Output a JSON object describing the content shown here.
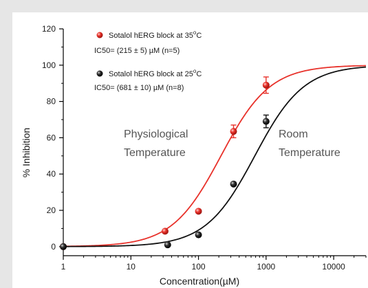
{
  "chart_data": {
    "type": "scatter",
    "xlabel": "Concentration(µM)",
    "ylabel": "% Inhibition",
    "xscale": "log",
    "xlim": [
      1,
      30000
    ],
    "ylim": [
      -5,
      120
    ],
    "x_ticks": [
      1,
      10,
      100,
      1000,
      10000
    ],
    "x_tick_labels": [
      "1",
      "10",
      "100",
      "1000",
      "10000"
    ],
    "y_ticks": [
      0,
      20,
      40,
      60,
      80,
      100,
      120
    ],
    "y_tick_labels": [
      "0",
      "20",
      "40",
      "60",
      "80",
      "100",
      "120"
    ],
    "grid": false,
    "legend_placement": "top-left",
    "series": [
      {
        "name": "Sotalol hERG block at 35°C",
        "label_main": "Sotalol hERG block at 35",
        "label_sup": "o",
        "label_tail": "C",
        "ic50_text": "IC50= (215 ± 5) µM  (n=5)",
        "color": "#e8312a",
        "ic50": 215,
        "hill": 1.2,
        "points": [
          {
            "x": 1,
            "y": 0,
            "err": 0
          },
          {
            "x": 32,
            "y": 8.5,
            "err": 0
          },
          {
            "x": 100,
            "y": 19.5,
            "err": 0
          },
          {
            "x": 330,
            "y": 63.5,
            "err": 3.5
          },
          {
            "x": 1000,
            "y": 89,
            "err": 4.5
          }
        ]
      },
      {
        "name": "Sotalol hERG block at 25°C",
        "label_main": "Sotalol  hERG block at 25",
        "label_sup": "o",
        "label_tail": "C",
        "ic50_text": "IC50= (681 ± 10) µM  (n=8)",
        "color": "#111111",
        "ic50": 681,
        "hill": 1.2,
        "points": [
          {
            "x": 1,
            "y": 0,
            "err": 0
          },
          {
            "x": 35,
            "y": 1,
            "err": 0
          },
          {
            "x": 100,
            "y": 6.5,
            "err": 0
          },
          {
            "x": 330,
            "y": 34.5,
            "err": 0
          },
          {
            "x": 1000,
            "y": 69,
            "err": 3.5
          }
        ]
      }
    ],
    "annotations": {
      "physio_line1": "Physiological",
      "physio_line2": "Temperature",
      "room_line1": "Room",
      "room_line2": "Temperature"
    }
  }
}
